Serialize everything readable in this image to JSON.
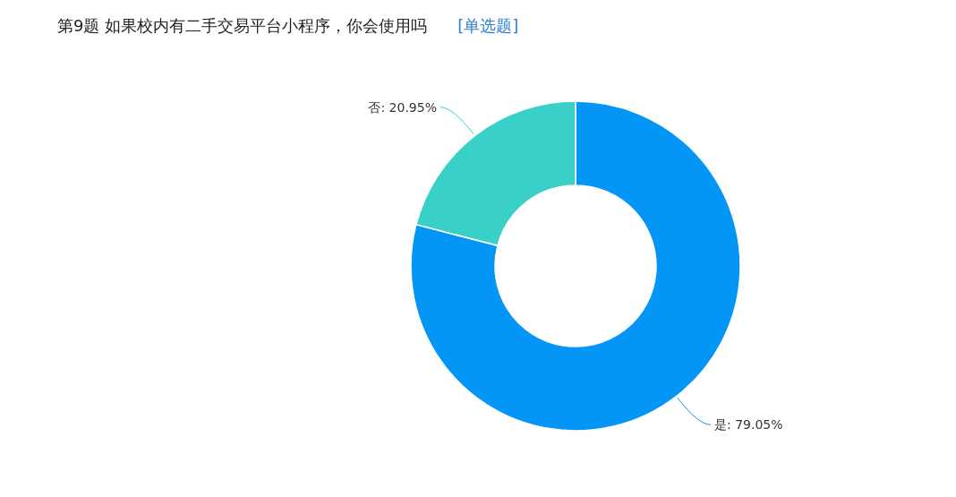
{
  "chart_data": {
    "type": "donut",
    "title": "第9题   如果校内有二手交易平台小程序，你会使用吗",
    "subtitle": "[单选题]",
    "categories": [
      "是",
      "否"
    ],
    "values": [
      79.05,
      20.95
    ],
    "colors": [
      "#0396f7",
      "#39d0c8"
    ],
    "value_labels": [
      ": 79.05%",
      ": 20.95%"
    ]
  }
}
